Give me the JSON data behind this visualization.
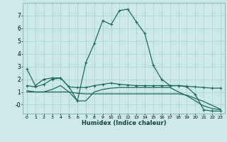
{
  "xlabel": "Humidex (Indice chaleur)",
  "bg_color": "#cce9e8",
  "grid_color": "#aed4d3",
  "line_color": "#1a6b5f",
  "x_ticks": [
    0,
    1,
    2,
    3,
    4,
    5,
    6,
    7,
    8,
    9,
    10,
    11,
    12,
    13,
    14,
    15,
    16,
    17,
    18,
    19,
    20,
    21,
    22,
    23
  ],
  "y_ticks": [
    0,
    1,
    2,
    3,
    4,
    5,
    6,
    7
  ],
  "y_tick_labels": [
    "-0",
    "1",
    "2",
    "3",
    "4",
    "5",
    "6",
    "7"
  ],
  "ylim": [
    -0.7,
    8.0
  ],
  "xlim": [
    -0.5,
    23.5
  ],
  "series1_x": [
    0,
    1,
    2,
    3,
    4,
    5,
    6,
    7,
    8,
    9,
    10,
    11,
    12,
    13,
    14,
    15,
    16,
    17,
    18,
    19,
    20,
    21,
    22,
    23
  ],
  "series1_y": [
    2.8,
    1.5,
    2.0,
    2.1,
    2.1,
    1.4,
    0.3,
    3.3,
    4.8,
    6.6,
    6.3,
    7.4,
    7.5,
    6.5,
    5.6,
    3.1,
    2.0,
    1.5,
    1.5,
    1.4,
    0.8,
    -0.4,
    -0.5,
    -0.5
  ],
  "series2_x": [
    0,
    1,
    2,
    3,
    4,
    5,
    6,
    7,
    8,
    9,
    10,
    11,
    12,
    13,
    14,
    15,
    16,
    17,
    18,
    19,
    20,
    21,
    22,
    23
  ],
  "series2_y": [
    1.5,
    1.4,
    1.6,
    2.0,
    2.1,
    1.4,
    1.35,
    1.35,
    1.5,
    1.6,
    1.7,
    1.6,
    1.55,
    1.5,
    1.5,
    1.5,
    1.5,
    1.5,
    1.5,
    1.45,
    1.4,
    1.35,
    1.3,
    1.3
  ],
  "series3_x": [
    0,
    1,
    2,
    3,
    4,
    5,
    6,
    7,
    8,
    9,
    10,
    11,
    12,
    13,
    14,
    15,
    16,
    17,
    18,
    19,
    20,
    21,
    22,
    23
  ],
  "series3_y": [
    1.0,
    1.0,
    1.0,
    1.0,
    1.0,
    1.0,
    0.9,
    0.85,
    0.85,
    0.85,
    0.85,
    0.85,
    0.85,
    0.85,
    0.85,
    0.85,
    0.85,
    0.85,
    0.85,
    0.75,
    0.5,
    0.25,
    -0.05,
    -0.35
  ],
  "series4_x": [
    0,
    1,
    2,
    3,
    4,
    5,
    6,
    7,
    8,
    9,
    10,
    11,
    12,
    13,
    14,
    15,
    16,
    17,
    18,
    19,
    20,
    21,
    22,
    23
  ],
  "series4_y": [
    1.1,
    1.0,
    1.0,
    1.2,
    1.5,
    1.0,
    0.3,
    0.3,
    1.0,
    1.2,
    1.3,
    1.35,
    1.35,
    1.35,
    1.35,
    1.35,
    1.35,
    1.35,
    1.0,
    0.7,
    0.3,
    -0.1,
    -0.3,
    -0.4
  ]
}
